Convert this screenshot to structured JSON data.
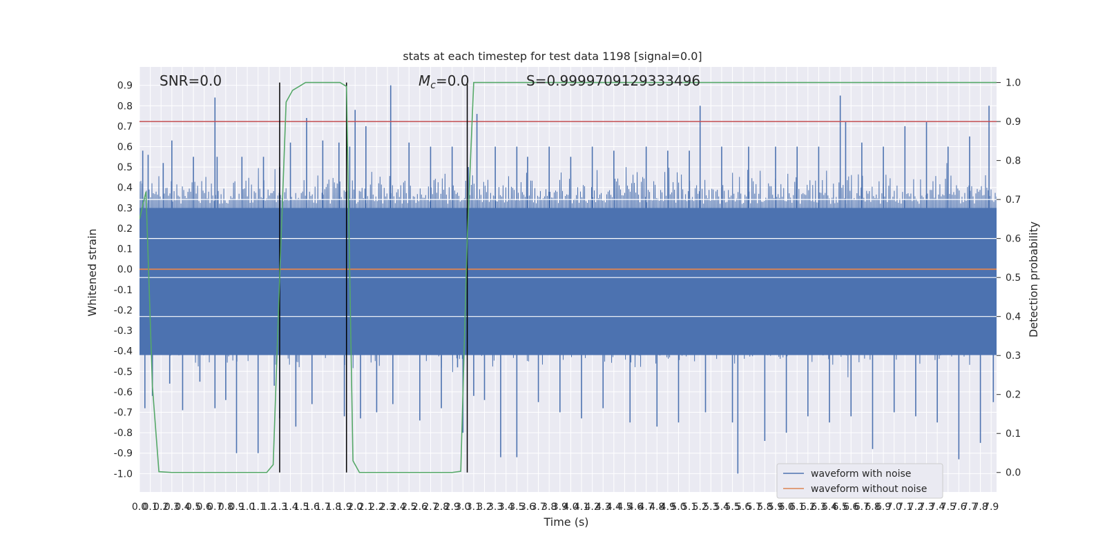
{
  "chart_data": {
    "type": "line",
    "title": "stats at each timestep for test data 1198 [signal=0.0]",
    "xlabel": "Time (s)",
    "ylabel": "Whitened strain",
    "y2label": "Detection probability",
    "xlim": [
      0.0,
      7.95
    ],
    "ylim": [
      -1.09,
      0.99
    ],
    "y2lim": [
      -0.05,
      1.04
    ],
    "x_ticks": [
      0.0,
      0.1,
      0.2,
      0.3,
      0.4,
      0.5,
      0.6,
      0.7,
      0.8,
      0.9,
      1.0,
      1.1,
      1.2,
      1.3,
      1.4,
      1.5,
      1.6,
      1.7,
      1.8,
      1.9,
      2.0,
      2.1,
      2.2,
      2.3,
      2.4,
      2.5,
      2.6,
      2.7,
      2.8,
      2.9,
      3.0,
      3.1,
      3.2,
      3.3,
      3.4,
      3.5,
      3.6,
      3.7,
      3.8,
      3.9,
      4.0,
      4.1,
      4.2,
      4.3,
      4.4,
      4.5,
      4.6,
      4.7,
      4.8,
      4.9,
      5.0,
      5.1,
      5.2,
      5.3,
      5.4,
      5.5,
      5.6,
      5.7,
      5.8,
      5.9,
      6.0,
      6.1,
      6.2,
      6.3,
      6.4,
      6.5,
      6.6,
      6.7,
      6.8,
      6.9,
      7.0,
      7.1,
      7.2,
      7.3,
      7.4,
      7.5,
      7.6,
      7.7,
      7.8,
      7.9
    ],
    "y_ticks": [
      -1.0,
      -0.9,
      -0.8,
      -0.7,
      -0.6,
      -0.5,
      -0.4,
      -0.3,
      -0.2,
      -0.1,
      0.0,
      0.1,
      0.2,
      0.3,
      0.4,
      0.5,
      0.6,
      0.7,
      0.8,
      0.9
    ],
    "y2_ticks": [
      0.0,
      0.1,
      0.2,
      0.3,
      0.4,
      0.5,
      0.6,
      0.7,
      0.8,
      0.9,
      1.0
    ],
    "grid": true,
    "legend": "lower-right",
    "annotations": {
      "snr": "SNR=0.0",
      "mc_symbol": "M",
      "mc_sub": "c",
      "mc_value": "=0.0",
      "s": "S=0.9999709129333496"
    },
    "threshold_y2": 0.9,
    "vertical_lines_x": [
      1.3,
      1.92,
      3.04
    ],
    "white_hlines_y2": [
      0.7,
      0.6,
      0.5,
      0.4
    ],
    "series": [
      {
        "name": "waveform with noise",
        "color": "#4c72b0",
        "description_values": "dense noise band approx within -0.45..0.45 with spikes",
        "spikes": [
          [
            0.03,
            0.58
          ],
          [
            0.05,
            -0.68
          ],
          [
            0.08,
            0.56
          ],
          [
            0.12,
            -0.62
          ],
          [
            0.22,
            0.52
          ],
          [
            0.28,
            -0.56
          ],
          [
            0.3,
            0.63
          ],
          [
            0.4,
            -0.69
          ],
          [
            0.5,
            0.55
          ],
          [
            0.56,
            -0.55
          ],
          [
            0.7,
            0.84
          ],
          [
            0.7,
            -0.68
          ],
          [
            0.72,
            0.55
          ],
          [
            0.8,
            -0.64
          ],
          [
            0.9,
            -0.9
          ],
          [
            0.95,
            0.55
          ],
          [
            1.1,
            -0.9
          ],
          [
            1.15,
            0.55
          ],
          [
            1.25,
            -0.57
          ],
          [
            1.3,
            0.5
          ],
          [
            1.3,
            -0.73
          ],
          [
            1.4,
            0.62
          ],
          [
            1.45,
            -0.77
          ],
          [
            1.55,
            0.74
          ],
          [
            1.6,
            -0.66
          ],
          [
            1.7,
            0.63
          ],
          [
            1.85,
            0.62
          ],
          [
            1.9,
            -0.72
          ],
          [
            1.95,
            0.6
          ],
          [
            2.0,
            0.78
          ],
          [
            2.05,
            -0.73
          ],
          [
            2.1,
            0.7
          ],
          [
            2.2,
            -0.7
          ],
          [
            2.33,
            0.9
          ],
          [
            2.35,
            -0.66
          ],
          [
            2.5,
            0.62
          ],
          [
            2.6,
            -0.74
          ],
          [
            2.7,
            0.6
          ],
          [
            2.8,
            -0.68
          ],
          [
            2.9,
            0.6
          ],
          [
            2.95,
            -0.48
          ],
          [
            3.0,
            -0.8
          ],
          [
            3.05,
            0.5
          ],
          [
            3.1,
            -0.62
          ],
          [
            3.13,
            0.76
          ],
          [
            3.2,
            -0.64
          ],
          [
            3.3,
            0.6
          ],
          [
            3.35,
            -0.92
          ],
          [
            3.5,
            0.6
          ],
          [
            3.5,
            -0.92
          ],
          [
            3.6,
            0.55
          ],
          [
            3.7,
            -0.65
          ],
          [
            3.8,
            0.6
          ],
          [
            3.9,
            -0.7
          ],
          [
            4.0,
            0.55
          ],
          [
            4.1,
            -0.73
          ],
          [
            4.2,
            0.6
          ],
          [
            4.3,
            -0.68
          ],
          [
            4.4,
            0.58
          ],
          [
            4.55,
            -0.75
          ],
          [
            4.7,
            0.6
          ],
          [
            4.8,
            -0.77
          ],
          [
            4.9,
            0.58
          ],
          [
            5.0,
            -0.75
          ],
          [
            5.1,
            0.58
          ],
          [
            5.2,
            0.8
          ],
          [
            5.25,
            -0.7
          ],
          [
            5.4,
            0.6
          ],
          [
            5.5,
            -0.75
          ],
          [
            5.55,
            -1.0
          ],
          [
            5.65,
            0.6
          ],
          [
            5.8,
            -0.84
          ],
          [
            5.9,
            0.6
          ],
          [
            6.0,
            -0.8
          ],
          [
            6.1,
            0.6
          ],
          [
            6.2,
            -0.72
          ],
          [
            6.3,
            0.6
          ],
          [
            6.4,
            -0.75
          ],
          [
            6.5,
            0.85
          ],
          [
            6.55,
            0.72
          ],
          [
            6.6,
            -0.72
          ],
          [
            6.7,
            0.62
          ],
          [
            6.8,
            -0.88
          ],
          [
            6.9,
            0.6
          ],
          [
            7.0,
            -0.7
          ],
          [
            7.1,
            0.7
          ],
          [
            7.2,
            -0.72
          ],
          [
            7.3,
            0.72
          ],
          [
            7.4,
            -0.75
          ],
          [
            7.5,
            0.6
          ],
          [
            7.6,
            -0.93
          ],
          [
            7.7,
            0.65
          ],
          [
            7.8,
            -0.85
          ],
          [
            7.88,
            0.8
          ],
          [
            7.92,
            -0.65
          ]
        ]
      },
      {
        "name": "waveform without noise",
        "color": "#dd8452",
        "x": [
          0.0,
          7.95
        ],
        "y": [
          0.0,
          0.0
        ]
      },
      {
        "name": "",
        "color": "#55a868",
        "axis": "y2",
        "x": [
          0.0,
          0.06,
          0.12,
          0.18,
          0.3,
          0.6,
          0.9,
          1.18,
          1.24,
          1.3,
          1.36,
          1.42,
          1.48,
          1.54,
          1.6,
          1.7,
          1.8,
          1.86,
          1.92,
          1.98,
          2.04,
          2.2,
          2.6,
          2.9,
          2.98,
          3.04,
          3.1,
          3.2,
          4.0,
          5.0,
          6.0,
          7.0,
          7.95
        ],
        "y": [
          0.65,
          0.72,
          0.22,
          0.002,
          0.0,
          0.0,
          0.0,
          0.0,
          0.02,
          0.5,
          0.95,
          0.98,
          0.99,
          1.0,
          1.0,
          1.0,
          1.0,
          1.0,
          0.99,
          0.03,
          0.0,
          0.0,
          0.0,
          0.0,
          0.003,
          0.6,
          1.0,
          1.0,
          1.0,
          1.0,
          1.0,
          1.0,
          1.0
        ]
      }
    ],
    "colors": {
      "background": "#eaeaf2",
      "grid": "#ffffff",
      "threshold": "#c44e52",
      "vline": "#000000"
    }
  }
}
